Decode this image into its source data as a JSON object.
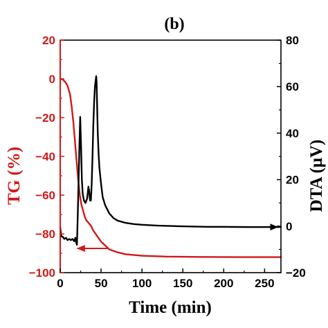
{
  "chart_data": {
    "type": "line",
    "title": "(b)",
    "xlabel": "Time (min)",
    "ylabel_left": "TG (%)",
    "ylabel_right": "DTA (μV)",
    "xlim": [
      0,
      270
    ],
    "ylim_left": [
      -100,
      20
    ],
    "ylim_right": [
      -20,
      80
    ],
    "x_ticks": [
      0,
      50,
      100,
      150,
      200,
      250
    ],
    "y_ticks_left": [
      20,
      0,
      -20,
      -40,
      -60,
      -80,
      -100
    ],
    "y_ticks_right": [
      80,
      60,
      40,
      20,
      0,
      -20
    ],
    "grid": false,
    "colors": {
      "tg": "#d01818",
      "dta": "#000000",
      "axis": "#000000"
    },
    "series": [
      {
        "key": "tg",
        "axis": "left",
        "x": [
          0,
          3,
          6,
          9,
          12,
          14,
          16,
          18,
          20,
          22,
          24,
          26,
          28,
          30,
          32,
          34,
          36,
          38,
          40,
          45,
          50,
          55,
          60,
          70,
          80,
          100,
          130,
          170,
          220,
          270
        ],
        "y": [
          0,
          -0.3,
          -1.5,
          -3.5,
          -8,
          -14,
          -22,
          -32,
          -42,
          -52,
          -60,
          -65,
          -68,
          -71,
          -73,
          -74,
          -75,
          -76,
          -78,
          -81,
          -84,
          -86,
          -88,
          -89.5,
          -90.5,
          -91.3,
          -91.7,
          -91.9,
          -92,
          -92
        ]
      },
      {
        "key": "dta",
        "axis": "right",
        "x": [
          0,
          0.8,
          1.5,
          3,
          5,
          7,
          9,
          11,
          13,
          15,
          17,
          18.5,
          19.5,
          20.5,
          21.5,
          22.5,
          23.5,
          24.5,
          25.5,
          26.5,
          27.5,
          29,
          31,
          33,
          34.5,
          35.5,
          36.5,
          37.5,
          38.5,
          39.5,
          40.5,
          41.5,
          42.5,
          43.5,
          44,
          44.5,
          45,
          45.5,
          46,
          47,
          48,
          50,
          52,
          55,
          60,
          65,
          70,
          80,
          90,
          100,
          120,
          150,
          180,
          200,
          230,
          250,
          270
        ],
        "y": [
          -0.5,
          -3,
          -4.5,
          -4.5,
          -5.5,
          -5,
          -6,
          -5.5,
          -6,
          -5.5,
          -6.5,
          -5,
          -7,
          -8,
          5,
          20,
          35,
          47,
          35,
          20,
          14,
          11,
          10,
          12,
          17,
          15,
          11,
          11,
          18,
          30,
          43,
          53,
          60,
          63,
          64.5,
          62,
          54,
          46,
          40,
          31,
          25,
          18,
          12.5,
          9,
          5.5,
          3.5,
          2.4,
          1.4,
          0.9,
          0.6,
          0.2,
          -0.1,
          -0.3,
          -0.3,
          -0.4,
          -0.4,
          -0.4
        ]
      }
    ],
    "annotations": [
      {
        "type": "arrow",
        "points_to": "left",
        "color": "#d01818",
        "from": [
          58,
          -87.5
        ],
        "to": [
          21,
          -87.5
        ]
      },
      {
        "type": "arrow",
        "points_to": "right",
        "color": "#000000",
        "from": [
          208,
          -0.4
        ],
        "to": [
          266,
          -0.4
        ]
      }
    ]
  }
}
